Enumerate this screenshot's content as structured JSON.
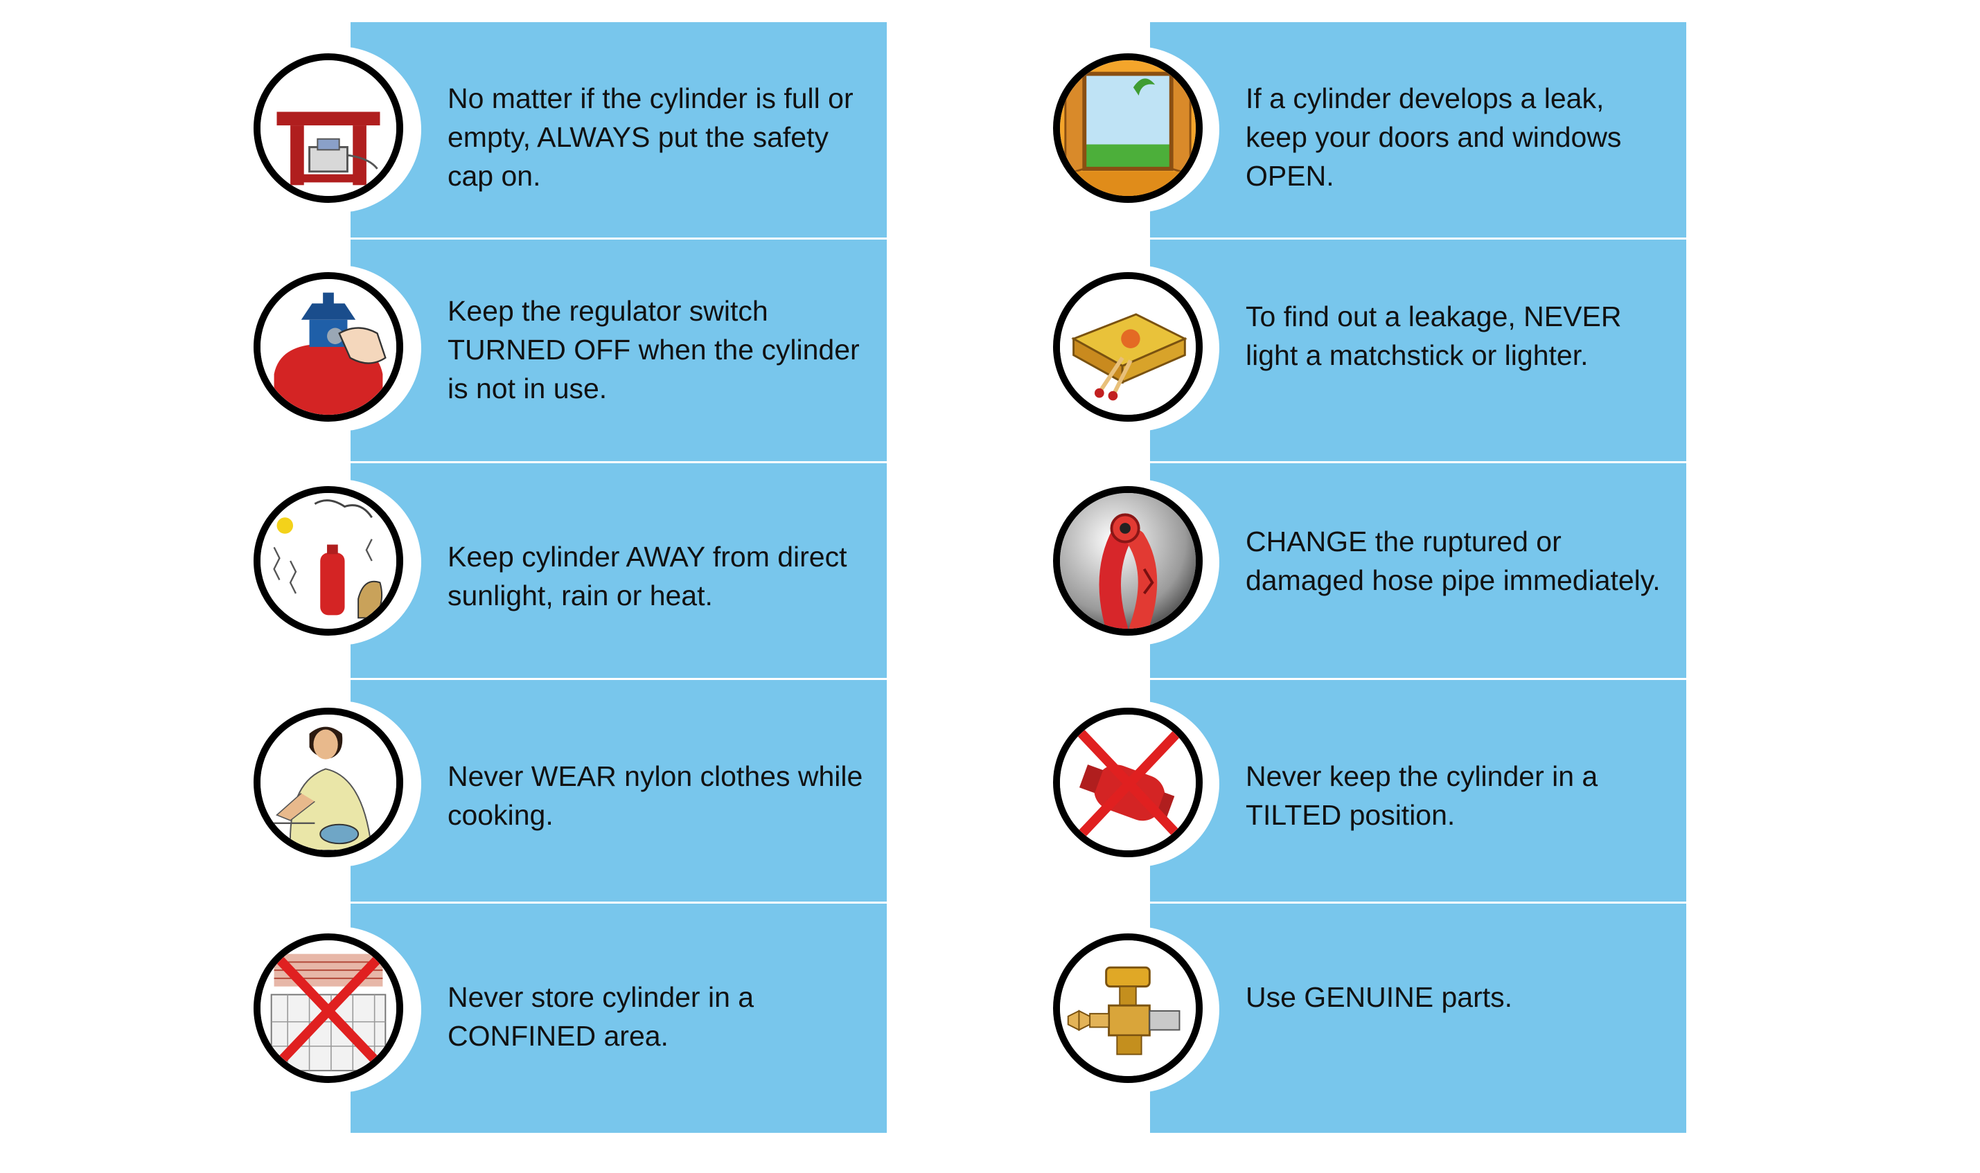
{
  "colors": {
    "panel": "#78c6ec",
    "divider": "#ffffff",
    "ring": "#000000"
  },
  "left_column": {
    "tips": [
      {
        "text": "No matter if the cylinder is full or empty, ALWAYS put the safety cap on.",
        "icon": "safety-cap-icon"
      },
      {
        "text": "Keep the regulator switch TURNED OFF when the cylinder is not in use.",
        "icon": "regulator-switch-icon"
      },
      {
        "text": "Keep cylinder AWAY from direct sunlight, rain or heat.",
        "icon": "sun-rain-heat-icon"
      },
      {
        "text": "Never WEAR nylon clothes while cooking.",
        "icon": "woman-cooking-icon"
      },
      {
        "text": "Never store cylinder in a CONFINED area.",
        "icon": "confined-area-icon"
      }
    ]
  },
  "right_column": {
    "tips": [
      {
        "text": "If a cylinder develops a leak, keep your doors and windows OPEN.",
        "icon": "open-window-icon"
      },
      {
        "text": "To find out a leakage, NEVER light a matchstick or lighter.",
        "icon": "matchbox-icon"
      },
      {
        "text": "CHANGE the ruptured or damaged hose pipe immediately.",
        "icon": "damaged-hose-icon"
      },
      {
        "text": "Never keep the cylinder in a TILTED position.",
        "icon": "tilted-cylinder-icon"
      },
      {
        "text": "Use GENUINE parts.",
        "icon": "brass-valve-icon"
      }
    ]
  }
}
